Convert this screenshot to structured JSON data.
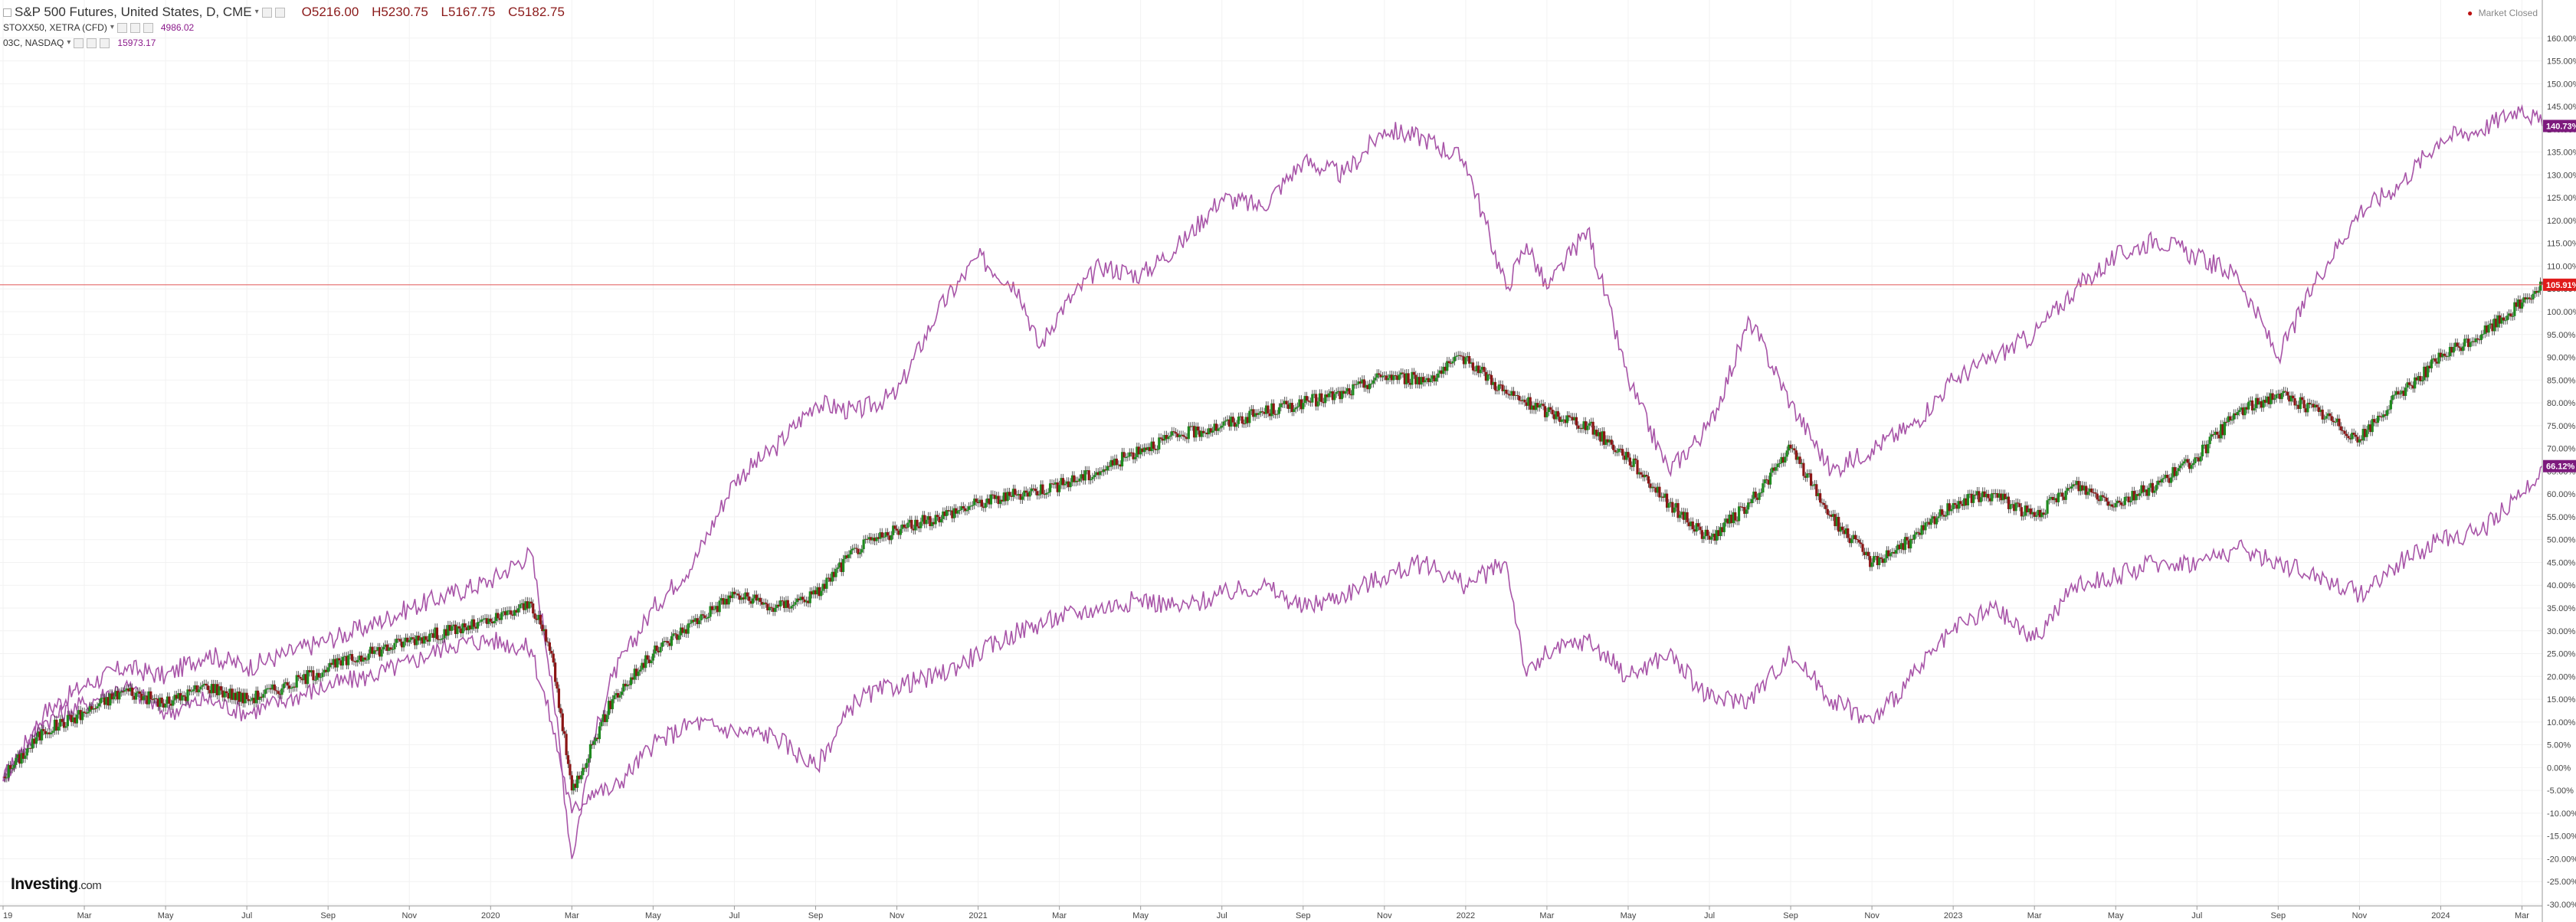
{
  "header": {
    "title": "S&P 500 Futures, United States, D, CME",
    "open": "O5216.00",
    "high": "H5230.75",
    "low": "L5167.75",
    "close": "C5182.75",
    "overlays": [
      {
        "label": "STOXX50, XETRA (CFD)",
        "value": "4986.02"
      },
      {
        "label": "03C, NASDAQ",
        "value": "15973.17"
      }
    ],
    "status": "Market Closed"
  },
  "logo": {
    "brand": "Investing",
    "suffix": ".com"
  },
  "colors": {
    "overlay": "#a855a8",
    "up": "#1f8a1f",
    "down": "#8b1515",
    "price_line": "#e05555",
    "price_label": "#e01b1b",
    "overlay_label": "#7d1a7d",
    "grid": "#f2f2f2",
    "axis_text": "#444444"
  },
  "chart_data": {
    "type": "line",
    "scale": "percent change",
    "ylim": [
      -30,
      165
    ],
    "y_ticks": [
      -30,
      -25,
      -20,
      -15,
      -10,
      -5,
      0,
      5,
      10,
      15,
      20,
      25,
      30,
      35,
      40,
      45,
      50,
      55,
      60,
      65,
      70,
      75,
      80,
      85,
      90,
      95,
      100,
      105,
      110,
      115,
      120,
      125,
      130,
      135,
      140,
      145,
      150,
      155,
      160
    ],
    "y_tick_labels": [
      "-30.00%",
      "-25.00%",
      "-20.00%",
      "-15.00%",
      "-10.00%",
      "-5.00%",
      "0.00%",
      "5.00%",
      "10.00%",
      "15.00%",
      "20.00%",
      "25.00%",
      "30.00%",
      "35.00%",
      "40.00%",
      "45.00%",
      "50.00%",
      "55.00%",
      "60.00%",
      "65.00%",
      "70.00%",
      "75.00%",
      "80.00%",
      "85.00%",
      "90.00%",
      "95.00%",
      "100.00%",
      "105.00%",
      "110.00%",
      "115.00%",
      "120.00%",
      "125.00%",
      "130.00%",
      "135.00%",
      "140.00%",
      "145.00%",
      "150.00%",
      "155.00%",
      "160.00%"
    ],
    "xlim": [
      0,
      62.5
    ],
    "x_tick_labels": [
      "19",
      "Mar",
      "May",
      "Jul",
      "Sep",
      "Nov",
      "2020",
      "Mar",
      "May",
      "Jul",
      "Sep",
      "Nov",
      "2021",
      "Mar",
      "May",
      "Jul",
      "Sep",
      "Nov",
      "2022",
      "Mar",
      "May",
      "Jul",
      "Sep",
      "Nov",
      "2023",
      "Mar",
      "May",
      "Jul",
      "Sep",
      "Nov",
      "2024",
      "Mar"
    ],
    "x_tick_positions": [
      0,
      2,
      4,
      6,
      8,
      10,
      12,
      14,
      16,
      18,
      20,
      22,
      24,
      26,
      28,
      30,
      32,
      34,
      36,
      38,
      40,
      42,
      44,
      46,
      48,
      50,
      52,
      54,
      56,
      58,
      60,
      62
    ],
    "current_price_line": 105.91,
    "last_value_labels": [
      {
        "text": "140.73%",
        "value": 140.73,
        "kind": "overlay"
      },
      {
        "text": "105.91%",
        "value": 105.91,
        "kind": "price"
      },
      {
        "text": "66.12%",
        "value": 66.12,
        "kind": "overlay"
      }
    ],
    "series": [
      {
        "x": [
          0,
          1,
          2,
          3,
          4,
          5,
          6,
          7,
          8,
          9,
          10,
          11,
          12,
          13,
          13.5,
          14,
          14.5,
          15,
          16,
          17,
          18,
          19,
          20,
          21,
          22,
          23,
          24,
          25,
          25.5,
          26,
          27,
          28,
          29,
          30,
          31,
          32,
          33,
          34,
          35,
          36,
          37,
          37.5,
          38,
          39,
          40,
          41,
          42,
          43,
          44,
          45,
          46,
          47,
          48,
          49,
          50,
          51,
          52,
          53,
          54,
          55,
          56,
          57,
          58,
          59,
          60,
          61,
          62,
          62.5
        ],
        "values": [
          -3,
          12,
          18,
          22,
          20,
          25,
          22,
          25,
          28,
          31,
          35,
          38,
          41,
          47,
          20,
          -20,
          5,
          20,
          35,
          45,
          63,
          70,
          80,
          78,
          82,
          100,
          112,
          105,
          92,
          100,
          110,
          108,
          115,
          125,
          123,
          133,
          130,
          140,
          138,
          133,
          105,
          115,
          105,
          118,
          85,
          65,
          75,
          98,
          80,
          65,
          70,
          75,
          85,
          90,
          95,
          105,
          112,
          116,
          112,
          108,
          90,
          108,
          122,
          128,
          138,
          140,
          145,
          140.73
        ]
      },
      {
        "x": [
          0,
          1,
          2,
          3,
          4,
          5,
          6,
          7,
          8,
          9,
          10,
          11,
          12,
          13,
          13.5,
          14,
          14.5,
          15,
          16,
          17,
          18,
          19,
          20,
          21,
          22,
          23,
          24,
          25,
          26,
          27,
          28,
          29,
          30,
          31,
          32,
          33,
          34,
          35,
          36,
          37,
          38,
          39,
          40,
          41,
          42,
          43,
          44,
          45,
          46,
          47,
          48,
          49,
          50,
          51,
          52,
          53,
          54,
          55,
          56,
          57,
          58,
          59,
          60,
          61,
          62,
          62.5
        ],
        "values": [
          -2,
          8,
          12,
          17,
          14,
          18,
          15,
          18,
          22,
          25,
          28,
          30,
          32,
          36,
          25,
          -5,
          5,
          15,
          25,
          32,
          38,
          35,
          38,
          48,
          52,
          55,
          58,
          60,
          62,
          65,
          70,
          73,
          75,
          78,
          80,
          82,
          86,
          85,
          90,
          82,
          78,
          75,
          68,
          58,
          50,
          58,
          70,
          55,
          45,
          50,
          58,
          60,
          55,
          62,
          58,
          62,
          68,
          78,
          82,
          78,
          72,
          82,
          90,
          95,
          102,
          105.91
        ]
      },
      {
        "x": [
          0,
          1,
          2,
          3,
          4,
          5,
          6,
          7,
          8,
          9,
          10,
          11,
          12,
          13,
          13.5,
          14,
          14.5,
          15,
          16,
          17,
          18,
          19,
          20,
          21,
          22,
          23,
          24,
          25,
          26,
          27,
          28,
          29,
          30,
          31,
          32,
          33,
          34,
          35,
          36,
          37,
          37.5,
          38,
          39,
          40,
          41,
          42,
          43,
          44,
          45,
          46,
          47,
          48,
          49,
          50,
          51,
          52,
          53,
          54,
          55,
          56,
          57,
          58,
          59,
          60,
          61,
          62,
          62.5
        ],
        "values": [
          -2,
          10,
          14,
          18,
          12,
          15,
          12,
          15,
          18,
          20,
          23,
          27,
          28,
          26,
          10,
          -10,
          -5,
          -5,
          5,
          10,
          8,
          7,
          0,
          15,
          18,
          20,
          25,
          30,
          33,
          35,
          37,
          35,
          38,
          40,
          35,
          38,
          42,
          45,
          40,
          45,
          20,
          25,
          28,
          20,
          25,
          15,
          15,
          25,
          15,
          10,
          20,
          30,
          35,
          28,
          40,
          42,
          45,
          45,
          48,
          45,
          42,
          38,
          45,
          50,
          52,
          60,
          66.12
        ]
      }
    ]
  }
}
